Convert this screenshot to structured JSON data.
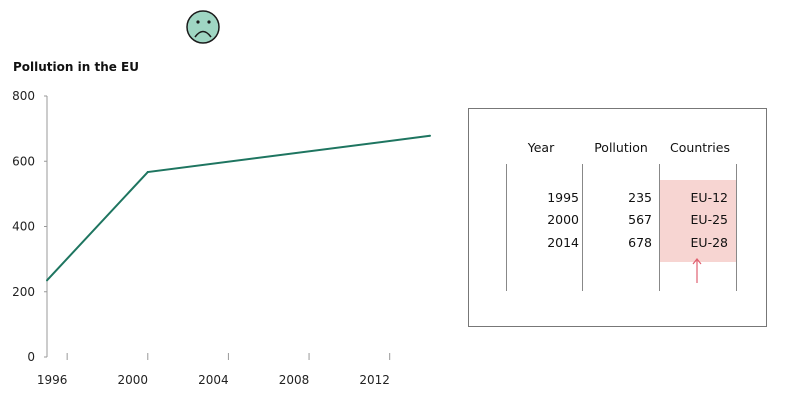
{
  "emoji": {
    "icon": "sad-face-icon",
    "face_color": "#9fd6c3",
    "stroke_color": "#1b1b1b"
  },
  "chart_data": {
    "type": "line",
    "title": "Pollution in the EU",
    "xlabel": "",
    "ylabel": "",
    "x": [
      1995,
      2000,
      2014
    ],
    "series": [
      {
        "values": [
          235,
          567,
          678
        ]
      }
    ],
    "x_ticks": [
      "1996",
      "2000",
      "2004",
      "2008",
      "2012"
    ],
    "y_ticks": [
      "800",
      "600",
      "400",
      "200",
      "0"
    ],
    "xlim": [
      1995,
      2014
    ],
    "ylim": [
      0,
      800
    ],
    "grid": false,
    "line_color": "#1e7560"
  },
  "table": {
    "headers": [
      "Year",
      "Pollution",
      "Countries"
    ],
    "rows": [
      [
        "1995",
        "235",
        "EU-12"
      ],
      [
        "2000",
        "567",
        "EU-25"
      ],
      [
        "2014",
        "678",
        "EU-28"
      ]
    ],
    "highlight_color": "#f7d5d2",
    "arrow_color": "#e06070"
  }
}
